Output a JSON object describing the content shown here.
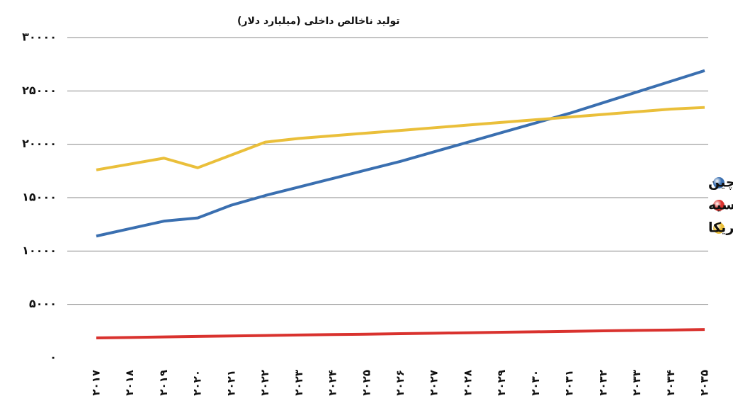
{
  "chart_data": {
    "type": "line",
    "y_label": "تولید ناخالص داخلی (میلیارد دلار)",
    "categories": [
      "۲۰۱۷",
      "۲۰۱۸",
      "۲۰۱۹",
      "۲۰۲۰",
      "۲۰۲۱",
      "۲۰۲۲",
      "۲۰۲۳",
      "۲۰۲۴",
      "۲۰۲۵",
      "۲۰۲۶",
      "۲۰۲۷",
      "۲۰۲۸",
      "۲۰۲۹",
      "۲۰۳۰",
      "۲۰۳۱",
      "۲۰۳۲",
      "۲۰۳۳",
      "۲۰۳۴",
      "۲۰۳۵"
    ],
    "series": [
      {
        "name": "چین",
        "color": "#3a6fb0",
        "values": [
          11400,
          12100,
          12800,
          13100,
          14300,
          15200,
          16000,
          16800,
          17600,
          18400,
          19300,
          20200,
          21100,
          22000,
          22900,
          23900,
          24900,
          25900,
          26900
        ]
      },
      {
        "name": "روسیه",
        "color": "#d9322e",
        "values": [
          1860,
          1900,
          1950,
          2000,
          2040,
          2080,
          2130,
          2170,
          2210,
          2260,
          2300,
          2340,
          2390,
          2430,
          2470,
          2520,
          2560,
          2600,
          2650
        ]
      },
      {
        "name": "آمریکا",
        "color": "#eabf3a",
        "values": [
          17600,
          18150,
          18700,
          17800,
          19000,
          20200,
          20550,
          20800,
          21050,
          21300,
          21550,
          21800,
          22050,
          22300,
          22550,
          22800,
          23050,
          23300,
          23450
        ]
      }
    ],
    "ylim": [
      0,
      30000
    ],
    "yticks": [
      {
        "value": 0,
        "label": "۰"
      },
      {
        "value": 5000,
        "label": "۵۰۰۰"
      },
      {
        "value": 10000,
        "label": "۱۰۰۰۰"
      },
      {
        "value": 15000,
        "label": "۱۵۰۰۰"
      },
      {
        "value": 20000,
        "label": "۲۰۰۰۰"
      },
      {
        "value": 25000,
        "label": "۲۵۰۰۰"
      },
      {
        "value": 30000,
        "label": "۳۰۰۰۰"
      }
    ],
    "grid": true,
    "legend": "right"
  }
}
